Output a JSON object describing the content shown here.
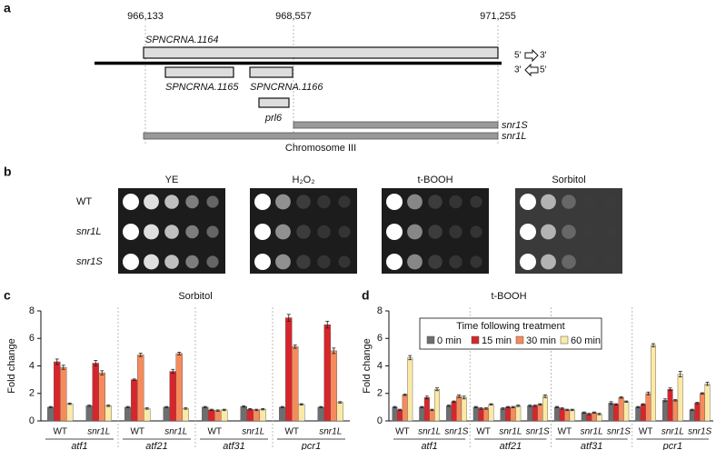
{
  "panel_labels": [
    "a",
    "b",
    "c",
    "d"
  ],
  "diagram": {
    "coordinates": [
      "966,133",
      "968,557",
      "971,255"
    ],
    "features": [
      "SPNCRNA.1164",
      "SPNCRNA.1165",
      "SPNCRNA.1166",
      "prl6",
      "snr1S",
      "snr1L"
    ],
    "strand_labels": [
      "5′",
      "3′",
      "3′",
      "5′"
    ],
    "chromosome": "Chromosome III"
  },
  "spot_assay": {
    "conditions": [
      "YE",
      "H₂O₂",
      "t-BOOH",
      "Sorbitol"
    ],
    "strains": [
      "WT",
      "snr1L",
      "snr1S"
    ]
  },
  "chart_data": [
    {
      "type": "bar",
      "title": "Sorbitol",
      "y_label": "Fold change",
      "categories": [
        "WT",
        "snr1L",
        "WT",
        "snr1L",
        "WT",
        "snr1L",
        "WT",
        "snr1L"
      ],
      "groups": [
        "atf1",
        "atf21",
        "atf31",
        "pcr1"
      ],
      "ylim": [
        0,
        8
      ],
      "yticks": [
        0,
        2,
        4,
        6,
        8
      ],
      "series": [
        {
          "color": "#6d6e71",
          "values": [
            1.0,
            1.1,
            1.0,
            1.0,
            1.0,
            1.05,
            1.0,
            1.0
          ],
          "errors": [
            0.05,
            0.05,
            0.05,
            0.05,
            0.05,
            0.05,
            0.05,
            0.05
          ]
        },
        {
          "color": "#d7262b",
          "values": [
            4.3,
            4.2,
            3.0,
            3.6,
            0.8,
            0.85,
            7.5,
            7.0
          ],
          "errors": [
            0.2,
            0.2,
            0.05,
            0.15,
            0.05,
            0.05,
            0.25,
            0.25
          ]
        },
        {
          "color": "#f58b5c",
          "values": [
            3.9,
            3.5,
            4.8,
            4.9,
            0.75,
            0.8,
            5.4,
            5.1
          ],
          "errors": [
            0.15,
            0.15,
            0.12,
            0.1,
            0.05,
            0.05,
            0.12,
            0.2
          ]
        },
        {
          "color": "#fbe9a6",
          "values": [
            1.25,
            1.1,
            0.9,
            0.9,
            0.8,
            0.85,
            1.2,
            1.35
          ],
          "errors": [
            0.05,
            0.05,
            0.05,
            0.05,
            0.05,
            0.05,
            0.05,
            0.05
          ]
        }
      ]
    },
    {
      "type": "bar",
      "title": "t-BOOH",
      "y_label": "Fold change",
      "categories": [
        "WT",
        "snr1L",
        "snr1S",
        "WT",
        "snr1L",
        "snr1S",
        "WT",
        "snr1L",
        "snr1S",
        "WT",
        "snr1L",
        "snr1S"
      ],
      "groups": [
        "atf1",
        "atf21",
        "atf31",
        "pcr1"
      ],
      "ylim": [
        0,
        8
      ],
      "yticks": [
        0,
        2,
        4,
        6,
        8
      ],
      "legend_title": "Time following treatment",
      "series": [
        {
          "name": "0 min",
          "color": "#6d6e71",
          "values": [
            1.0,
            1.0,
            1.1,
            1.0,
            0.9,
            1.1,
            1.0,
            0.6,
            1.3,
            1.0,
            1.5,
            0.8
          ],
          "errors": [
            0.05,
            0.05,
            0.05,
            0.05,
            0.05,
            0.05,
            0.05,
            0.05,
            0.1,
            0.05,
            0.1,
            0.05
          ]
        },
        {
          "name": "15 min",
          "color": "#d7262b",
          "values": [
            0.8,
            1.7,
            1.4,
            0.9,
            1.0,
            1.1,
            0.9,
            0.5,
            1.2,
            1.2,
            2.3,
            1.3
          ],
          "errors": [
            0.05,
            0.1,
            0.05,
            0.05,
            0.05,
            0.05,
            0.05,
            0.05,
            0.05,
            0.05,
            0.1,
            0.05
          ]
        },
        {
          "name": "30 min",
          "color": "#f58b5c",
          "values": [
            1.9,
            0.8,
            1.8,
            0.9,
            1.0,
            1.2,
            0.8,
            0.6,
            1.7,
            2.0,
            1.5,
            2.0
          ],
          "errors": [
            0.05,
            0.05,
            0.1,
            0.05,
            0.05,
            0.05,
            0.05,
            0.05,
            0.05,
            0.1,
            0.05,
            0.05
          ]
        },
        {
          "name": "60 min",
          "color": "#fbe9a6",
          "values": [
            4.6,
            2.3,
            1.7,
            1.2,
            1.1,
            1.8,
            0.8,
            0.5,
            1.4,
            5.5,
            3.4,
            2.7
          ],
          "errors": [
            0.15,
            0.1,
            0.1,
            0.05,
            0.05,
            0.1,
            0.05,
            0.05,
            0.05,
            0.12,
            0.2,
            0.12
          ]
        }
      ]
    }
  ]
}
